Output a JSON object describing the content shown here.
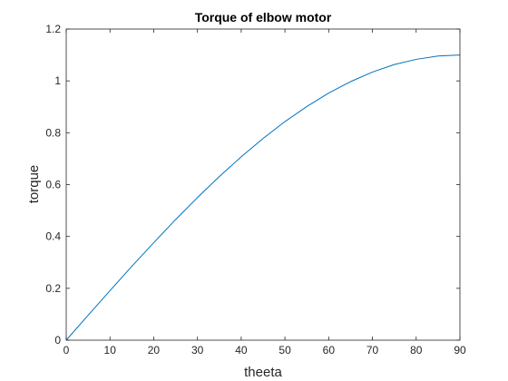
{
  "chart_data": {
    "type": "line",
    "title": "Torque of elbow motor",
    "xlabel": "theeta",
    "ylabel": "torque",
    "xlim": [
      0,
      90
    ],
    "ylim": [
      0,
      1.2
    ],
    "xticks": [
      0,
      10,
      20,
      30,
      40,
      50,
      60,
      70,
      80,
      90
    ],
    "yticks": [
      0,
      0.2,
      0.4,
      0.6,
      0.8,
      1,
      1.2
    ],
    "xtick_labels": [
      "0",
      "10",
      "20",
      "30",
      "40",
      "50",
      "60",
      "70",
      "80",
      "90"
    ],
    "ytick_labels": [
      "0",
      "0.2",
      "0.4",
      "0.6",
      "0.8",
      "1",
      "1.2"
    ],
    "grid": false,
    "series": [
      {
        "color": "#0072BD",
        "x": [
          0,
          5,
          10,
          15,
          20,
          25,
          30,
          35,
          40,
          45,
          50,
          55,
          60,
          65,
          70,
          75,
          80,
          85,
          90
        ],
        "y": [
          0,
          0.096,
          0.191,
          0.285,
          0.376,
          0.465,
          0.55,
          0.631,
          0.707,
          0.778,
          0.843,
          0.901,
          0.953,
          0.997,
          1.034,
          1.063,
          1.083,
          1.096,
          1.1
        ]
      }
    ]
  }
}
